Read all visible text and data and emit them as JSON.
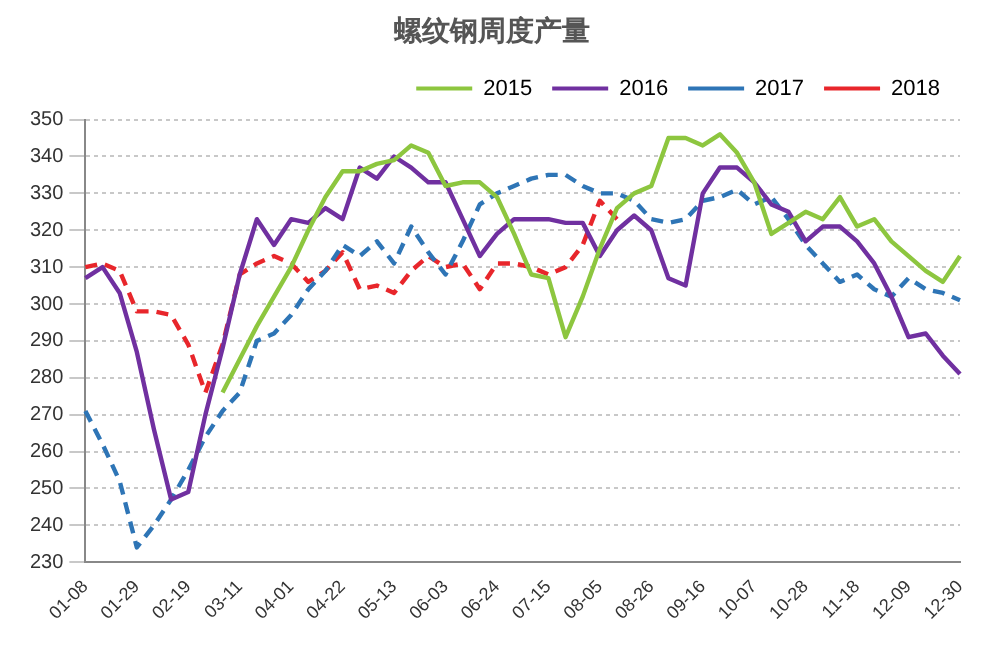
{
  "chart_data": {
    "type": "line",
    "title": "螺纹钢周度产量",
    "categories": [
      "01-08",
      null,
      null,
      "01-29",
      null,
      null,
      "02-19",
      null,
      null,
      "03-11",
      null,
      null,
      "04-01",
      null,
      null,
      "04-22",
      null,
      null,
      "05-13",
      null,
      null,
      "06-03",
      null,
      null,
      "06-24",
      null,
      null,
      "07-15",
      null,
      null,
      "08-05",
      null,
      null,
      "08-26",
      null,
      null,
      "09-16",
      null,
      null,
      "10-07",
      null,
      null,
      "10-28",
      null,
      null,
      "11-18",
      null,
      null,
      "12-09",
      null,
      null,
      "12-30"
    ],
    "series": [
      {
        "name": "2015",
        "color": "#8dc63f",
        "line_style": "solid",
        "values": [
          null,
          null,
          null,
          null,
          null,
          null,
          null,
          null,
          276,
          285,
          294,
          302,
          310,
          320,
          329,
          336,
          336,
          338,
          339,
          343,
          341,
          332,
          333,
          333,
          329,
          319,
          308,
          307,
          291,
          302,
          315,
          326,
          330,
          332,
          345,
          345,
          343,
          346,
          341,
          333,
          319,
          322,
          325,
          323,
          329,
          321,
          323,
          317,
          313,
          309,
          306,
          313
        ]
      },
      {
        "name": "2016",
        "color": "#7030a0",
        "line_style": "solid",
        "values": [
          307,
          310,
          303,
          287,
          266,
          247,
          249,
          270,
          288,
          308,
          323,
          316,
          323,
          322,
          326,
          323,
          337,
          334,
          340,
          337,
          333,
          333,
          323,
          313,
          319,
          323,
          323,
          323,
          322,
          322,
          313,
          320,
          324,
          320,
          307,
          305,
          330,
          337,
          337,
          333,
          327,
          325,
          317,
          321,
          321,
          317,
          311,
          302,
          291,
          292,
          286,
          281
        ]
      },
      {
        "name": "2017",
        "color": "#2e75b6",
        "line_style": "dashed",
        "values": [
          271,
          262,
          252,
          234,
          240,
          247,
          255,
          264,
          271,
          276,
          290,
          292,
          297,
          304,
          309,
          316,
          313,
          317,
          311,
          321,
          314,
          308,
          317,
          327,
          330,
          332,
          334,
          335,
          335,
          332,
          330,
          330,
          328,
          323,
          322,
          323,
          328,
          329,
          331,
          327,
          329,
          323,
          316,
          311,
          306,
          308,
          304,
          302,
          307,
          304,
          303,
          301
        ]
      },
      {
        "name": "2018",
        "color": "#e8262b",
        "line_style": "dashed",
        "values": [
          310,
          311,
          309,
          298,
          298,
          297,
          289,
          276,
          289,
          308,
          311,
          313,
          311,
          306,
          309,
          314,
          304,
          305,
          303,
          309,
          313,
          310,
          311,
          304,
          311,
          311,
          310,
          308,
          310,
          316,
          328,
          323,
          null,
          null,
          null,
          null,
          null,
          null,
          null,
          null,
          null,
          null,
          null,
          null,
          null,
          null,
          null,
          null,
          null,
          null,
          null,
          null
        ]
      }
    ],
    "ylim": [
      230,
      350
    ],
    "yticks": [
      230,
      240,
      250,
      260,
      270,
      280,
      290,
      300,
      310,
      320,
      330,
      340,
      350
    ],
    "grid": "y",
    "legend": "top",
    "marker": "none"
  }
}
